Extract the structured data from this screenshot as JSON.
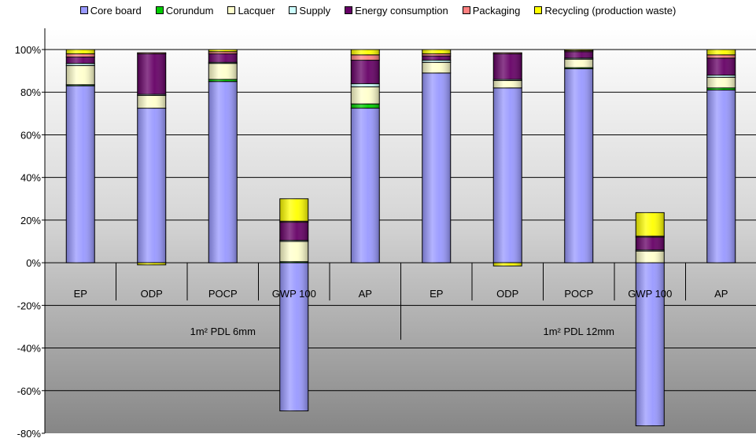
{
  "chart_data": {
    "type": "bar",
    "stacked": true,
    "legend_position": "top",
    "ylim": [
      -80,
      100
    ],
    "y_ticks": [
      -80,
      -60,
      -40,
      -20,
      0,
      20,
      40,
      60,
      80,
      100
    ],
    "y_tick_labels": [
      "-80%",
      "-60%",
      "-40%",
      "-20%",
      "0%",
      "20%",
      "40%",
      "60%",
      "80%",
      "100%"
    ],
    "categories": [
      "EP",
      "ODP",
      "POCP",
      "GWP 100",
      "AP",
      "EP",
      "ODP",
      "POCP",
      "GWP 100",
      "AP"
    ],
    "groups": [
      {
        "label": "1m² PDL 6mm",
        "categories": [
          "EP",
          "ODP",
          "POCP",
          "GWP 100",
          "AP"
        ]
      },
      {
        "label": "1m² PDL 12mm",
        "categories": [
          "EP",
          "ODP",
          "POCP",
          "GWP 100",
          "AP"
        ]
      }
    ],
    "series": [
      {
        "name": "Core board",
        "color": "#9999ff",
        "values": [
          83,
          72.5,
          85,
          -69.5,
          72.5,
          89,
          82,
          91,
          -76.5,
          81
        ]
      },
      {
        "name": "Corundum",
        "color": "#00cc00",
        "values": [
          0.5,
          0,
          1,
          0.5,
          2,
          0,
          0,
          0.5,
          0,
          1
        ]
      },
      {
        "name": "Lacquer",
        "color": "#ffffcc",
        "values": [
          9,
          6,
          7.5,
          9.5,
          8,
          5,
          3.5,
          4,
          5.5,
          5
        ]
      },
      {
        "name": "Supply",
        "color": "#ccffff",
        "values": [
          1,
          0.5,
          0.5,
          0.5,
          1.5,
          1,
          0.5,
          0.5,
          0.5,
          1
        ]
      },
      {
        "name": "Energy consumption",
        "color": "#660066",
        "values": [
          3,
          19,
          4,
          8.5,
          11,
          2,
          12,
          3,
          6,
          8
        ]
      },
      {
        "name": "Packaging",
        "color": "#ff8080",
        "values": [
          1.5,
          0.5,
          1,
          0.5,
          2.5,
          1,
          0.5,
          0.5,
          0.5,
          1.5
        ]
      },
      {
        "name": "Recycling (production waste)",
        "color": "#ffff00",
        "values": [
          2,
          -1,
          1,
          10.5,
          2.5,
          2,
          -1.5,
          0.5,
          11,
          2.5
        ]
      }
    ],
    "title": "",
    "xlabel": "",
    "ylabel": "",
    "grid": "horizontal"
  }
}
